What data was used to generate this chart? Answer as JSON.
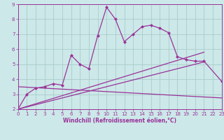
{
  "bg_color": "#cce8e8",
  "grid_color": "#aacccc",
  "line_color": "#993399",
  "xlabel": "Windchill (Refroidissement éolien,°C)",
  "xlim": [
    0,
    23
  ],
  "ylim": [
    2,
    9
  ],
  "yticks": [
    2,
    3,
    4,
    5,
    6,
    7,
    8,
    9
  ],
  "xticks": [
    0,
    1,
    2,
    3,
    4,
    5,
    6,
    7,
    8,
    9,
    10,
    11,
    12,
    13,
    14,
    15,
    16,
    17,
    18,
    19,
    20,
    21,
    22,
    23
  ],
  "main_series": {
    "x": [
      0,
      1,
      2,
      3,
      4,
      5,
      6,
      7,
      8,
      9,
      10,
      11,
      12,
      13,
      14,
      15,
      16,
      17,
      18,
      19,
      20,
      21,
      23
    ],
    "y": [
      2.0,
      3.0,
      3.4,
      3.5,
      3.7,
      3.6,
      5.6,
      5.0,
      4.7,
      6.9,
      8.8,
      8.0,
      6.5,
      7.0,
      7.5,
      7.6,
      7.4,
      7.1,
      5.5,
      5.3,
      5.2,
      5.2,
      3.85
    ]
  },
  "straight_lines": [
    {
      "x": [
        0,
        21
      ],
      "y": [
        2.0,
        5.8
      ]
    },
    {
      "x": [
        0,
        21
      ],
      "y": [
        2.0,
        5.15
      ]
    },
    {
      "x": [
        0,
        23
      ],
      "y": [
        3.5,
        2.75
      ]
    }
  ]
}
